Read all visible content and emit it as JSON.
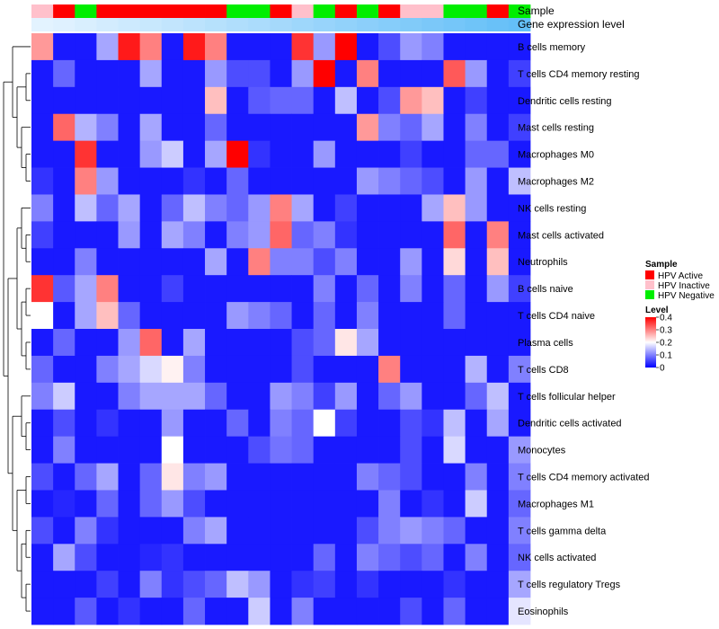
{
  "chart_data": {
    "type": "heatmap",
    "annotation_tracks": [
      {
        "name": "Sample",
        "values": [
          "HPV Inactive",
          "HPV Active",
          "HPV Negative",
          "HPV Active",
          "HPV Active",
          "HPV Active",
          "HPV Active",
          "HPV Active",
          "HPV Active",
          "HPV Negative",
          "HPV Negative",
          "HPV Active",
          "HPV Inactive",
          "HPV Negative",
          "HPV Active",
          "HPV Negative",
          "HPV Active",
          "HPV Inactive",
          "HPV Inactive",
          "HPV Negative",
          "HPV Negative",
          "HPV Active",
          "HPV Negative"
        ]
      },
      {
        "name": "Gene expression level",
        "values": [
          0.02,
          0.05,
          0.09,
          0.13,
          0.17,
          0.21,
          0.25,
          0.29,
          0.33,
          0.37,
          0.41,
          0.45,
          0.5,
          0.54,
          0.58,
          0.62,
          0.66,
          0.7,
          0.74,
          0.78,
          0.82,
          0.86,
          0.9
        ]
      }
    ],
    "rows": [
      "B cells memory",
      "T cells CD4 memory resting",
      "Dendritic cells resting",
      "Mast cells resting",
      "Macrophages M0",
      "Macrophages M2",
      "NK cells resting",
      "Mast cells activated",
      "Neutrophils",
      "B cells naive",
      "T cells CD4 naive",
      "Plasma cells",
      "T cells CD8",
      "T cells follicular helper",
      "Dendritic cells activated",
      "Monocytes",
      "T cells CD4 memory activated",
      "Macrophages M1",
      "T cells gamma delta",
      "NK cells activated",
      "T cells regulatory  Tregs",
      "Eosinophils"
    ],
    "values": [
      [
        0.28,
        0.02,
        0.02,
        0.13,
        0.38,
        0.3,
        0.02,
        0.38,
        0.3,
        0.02,
        0.02,
        0.02,
        0.36,
        0.12,
        0.4,
        0.02,
        0.06,
        0.12,
        0.1,
        0.02,
        0.02,
        0.02,
        0.02
      ],
      [
        0.02,
        0.08,
        0.02,
        0.02,
        0.02,
        0.13,
        0.02,
        0.02,
        0.12,
        0.06,
        0.06,
        0.02,
        0.12,
        0.4,
        0.02,
        0.3,
        0.02,
        0.02,
        0.02,
        0.33,
        0.12,
        0.02,
        0.05
      ],
      [
        0.02,
        0.02,
        0.02,
        0.02,
        0.02,
        0.02,
        0.02,
        0.02,
        0.25,
        0.02,
        0.07,
        0.08,
        0.08,
        0.02,
        0.15,
        0.02,
        0.06,
        0.28,
        0.25,
        0.02,
        0.05,
        0.02,
        0.02
      ],
      [
        0.02,
        0.32,
        0.14,
        0.1,
        0.02,
        0.13,
        0.02,
        0.02,
        0.08,
        0.02,
        0.02,
        0.02,
        0.02,
        0.02,
        0.02,
        0.28,
        0.1,
        0.08,
        0.13,
        0.02,
        0.1,
        0.02,
        0.05
      ],
      [
        0.02,
        0.02,
        0.36,
        0.02,
        0.02,
        0.12,
        0.16,
        0.02,
        0.13,
        0.4,
        0.04,
        0.02,
        0.02,
        0.12,
        0.02,
        0.02,
        0.02,
        0.05,
        0.02,
        0.02,
        0.08,
        0.08,
        0.02
      ],
      [
        0.04,
        0.02,
        0.3,
        0.12,
        0.02,
        0.02,
        0.02,
        0.04,
        0.02,
        0.08,
        0.02,
        0.02,
        0.02,
        0.02,
        0.02,
        0.12,
        0.1,
        0.08,
        0.06,
        0.02,
        0.12,
        0.02,
        0.15
      ],
      [
        0.1,
        0.02,
        0.15,
        0.08,
        0.13,
        0.02,
        0.08,
        0.15,
        0.1,
        0.08,
        0.12,
        0.3,
        0.13,
        0.02,
        0.05,
        0.02,
        0.02,
        0.02,
        0.13,
        0.25,
        0.12,
        0.02,
        0.02
      ],
      [
        0.05,
        0.02,
        0.02,
        0.02,
        0.12,
        0.02,
        0.13,
        0.1,
        0.02,
        0.1,
        0.12,
        0.32,
        0.08,
        0.1,
        0.04,
        0.02,
        0.02,
        0.02,
        0.02,
        0.32,
        0.02,
        0.3,
        0.02
      ],
      [
        0.02,
        0.02,
        0.1,
        0.02,
        0.02,
        0.02,
        0.02,
        0.02,
        0.13,
        0.02,
        0.3,
        0.1,
        0.1,
        0.06,
        0.1,
        0.02,
        0.02,
        0.12,
        0.02,
        0.23,
        0.02,
        0.25,
        0.02
      ],
      [
        0.36,
        0.07,
        0.13,
        0.3,
        0.02,
        0.02,
        0.05,
        0.02,
        0.02,
        0.02,
        0.02,
        0.02,
        0.02,
        0.1,
        0.02,
        0.08,
        0.02,
        0.1,
        0.02,
        0.08,
        0.02,
        0.12,
        0.05
      ],
      [
        0.2,
        0.02,
        0.13,
        0.25,
        0.08,
        0.02,
        0.02,
        0.02,
        0.02,
        0.12,
        0.1,
        0.08,
        0.02,
        0.08,
        0.02,
        0.1,
        0.02,
        0.02,
        0.02,
        0.08,
        0.02,
        0.02,
        0.02
      ],
      [
        0.02,
        0.08,
        0.02,
        0.02,
        0.12,
        0.32,
        0.02,
        0.13,
        0.02,
        0.02,
        0.02,
        0.02,
        0.06,
        0.08,
        0.22,
        0.13,
        0.02,
        0.02,
        0.02,
        0.02,
        0.02,
        0.02,
        0.02
      ],
      [
        0.08,
        0.02,
        0.02,
        0.1,
        0.13,
        0.17,
        0.21,
        0.1,
        0.02,
        0.02,
        0.02,
        0.02,
        0.06,
        0.02,
        0.02,
        0.02,
        0.3,
        0.02,
        0.02,
        0.02,
        0.14,
        0.02,
        0.1
      ],
      [
        0.1,
        0.16,
        0.02,
        0.02,
        0.1,
        0.13,
        0.13,
        0.13,
        0.08,
        0.02,
        0.02,
        0.12,
        0.1,
        0.05,
        0.12,
        0.02,
        0.08,
        0.12,
        0.02,
        0.02,
        0.08,
        0.15,
        0.02
      ],
      [
        0.02,
        0.06,
        0.02,
        0.04,
        0.02,
        0.02,
        0.12,
        0.02,
        0.02,
        0.08,
        0.02,
        0.1,
        0.08,
        0.2,
        0.05,
        0.02,
        0.02,
        0.06,
        0.04,
        0.15,
        0.02,
        0.13,
        0.02
      ],
      [
        0.02,
        0.1,
        0.02,
        0.02,
        0.02,
        0.02,
        0.2,
        0.02,
        0.02,
        0.02,
        0.06,
        0.09,
        0.08,
        0.02,
        0.02,
        0.02,
        0.02,
        0.06,
        0.02,
        0.17,
        0.02,
        0.02,
        0.12
      ],
      [
        0.06,
        0.02,
        0.08,
        0.13,
        0.02,
        0.08,
        0.22,
        0.1,
        0.12,
        0.02,
        0.02,
        0.02,
        0.02,
        0.02,
        0.02,
        0.1,
        0.08,
        0.06,
        0.02,
        0.02,
        0.1,
        0.02,
        0.1
      ],
      [
        0.02,
        0.03,
        0.02,
        0.08,
        0.02,
        0.08,
        0.12,
        0.06,
        0.02,
        0.02,
        0.02,
        0.02,
        0.02,
        0.02,
        0.02,
        0.02,
        0.1,
        0.02,
        0.04,
        0.02,
        0.16,
        0.02,
        0.08
      ],
      [
        0.06,
        0.02,
        0.1,
        0.04,
        0.02,
        0.02,
        0.02,
        0.1,
        0.13,
        0.02,
        0.02,
        0.02,
        0.02,
        0.02,
        0.02,
        0.06,
        0.1,
        0.12,
        0.1,
        0.08,
        0.02,
        0.02,
        0.1
      ],
      [
        0.02,
        0.13,
        0.06,
        0.02,
        0.02,
        0.03,
        0.04,
        0.02,
        0.02,
        0.02,
        0.02,
        0.02,
        0.02,
        0.08,
        0.02,
        0.1,
        0.08,
        0.06,
        0.08,
        0.02,
        0.1,
        0.02,
        0.08
      ],
      [
        0.02,
        0.02,
        0.02,
        0.05,
        0.02,
        0.1,
        0.04,
        0.06,
        0.08,
        0.15,
        0.12,
        0.02,
        0.04,
        0.05,
        0.02,
        0.04,
        0.02,
        0.02,
        0.02,
        0.04,
        0.02,
        0.02,
        0.13
      ],
      [
        0.02,
        0.02,
        0.07,
        0.02,
        0.04,
        0.02,
        0.02,
        0.08,
        0.02,
        0.02,
        0.16,
        0.02,
        0.1,
        0.02,
        0.02,
        0.02,
        0.02,
        0.06,
        0.02,
        0.08,
        0.02,
        0.02,
        0.18
      ]
    ],
    "color_scale": {
      "min": 0,
      "mid": 0.2,
      "max": 0.4,
      "colors": [
        "#0000ff",
        "#ffffff",
        "#ff0000"
      ]
    },
    "legends": {
      "sample": {
        "title": "Sample",
        "entries": [
          {
            "label": "HPV Active",
            "color": "#ff0000"
          },
          {
            "label": "HPV Inactive",
            "color": "#ffc0cb"
          },
          {
            "label": "HPV Negative",
            "color": "#00ee00"
          }
        ]
      },
      "level": {
        "title": "Level",
        "ticks": [
          {
            "value": 0.4,
            "label": "0.4"
          },
          {
            "value": 0.3,
            "label": "0.3"
          },
          {
            "value": 0.2,
            "label": "0.2"
          },
          {
            "value": 0.1,
            "label": "0.1"
          },
          {
            "value": 0,
            "label": "0"
          }
        ]
      }
    },
    "expression_track_colors": [
      "#e6f4ff",
      "#55b9f7"
    ]
  }
}
